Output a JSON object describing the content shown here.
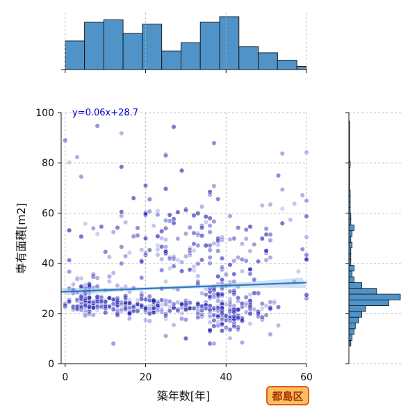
{
  "chart_data": {
    "type": "scatter",
    "title": "",
    "xlabel": "築年数[年]",
    "ylabel": "専有面積[m2]",
    "xlim": [
      -1,
      60
    ],
    "ylim": [
      0,
      100
    ],
    "xticks": [
      0,
      20,
      40,
      60
    ],
    "yticks": [
      0,
      20,
      40,
      60,
      80,
      100
    ],
    "grid": true,
    "regression": {
      "slope": 0.06,
      "intercept": 28.7,
      "label": "y=0.06x+28.7"
    },
    "badge": "都島区",
    "colors": {
      "point": "#1a1ab4",
      "hist_fill": "#4f93c8",
      "hist_edge": "#111111",
      "line": "#2a7bbf",
      "band": "#a8c8e8",
      "badge_fill": "#f8c060",
      "badge_edge": "#e85a10",
      "badge_text": "#a83000",
      "annotation": "#0000cc",
      "grid": "#b0b0b0"
    },
    "clusters": [
      {
        "cx": 6,
        "cy": 23.5,
        "sx": 3.5,
        "sy": 1.8,
        "n": 80
      },
      {
        "cx": 5,
        "cy": 29,
        "sx": 2.5,
        "sy": 3,
        "n": 40
      },
      {
        "cx": 14,
        "cy": 24,
        "sx": 3,
        "sy": 2.5,
        "n": 50
      },
      {
        "cx": 21,
        "cy": 23,
        "sx": 2.5,
        "sy": 2.5,
        "n": 55
      },
      {
        "cx": 28,
        "cy": 22,
        "sx": 3.5,
        "sy": 2.5,
        "n": 40
      },
      {
        "cx": 39,
        "cy": 19,
        "sx": 3,
        "sy": 4,
        "n": 90
      },
      {
        "cx": 38,
        "cy": 26,
        "sx": 4,
        "sy": 4,
        "n": 40
      },
      {
        "cx": 46,
        "cy": 24,
        "sx": 4,
        "sy": 3,
        "n": 40
      },
      {
        "cx": 30,
        "cy": 45,
        "sx": 16,
        "sy": 12,
        "n": 200
      },
      {
        "cx": 30,
        "cy": 72,
        "sx": 18,
        "sy": 14,
        "n": 30
      }
    ],
    "top_hist": {
      "bin_width": 4.8,
      "x_start": 0,
      "counts": [
        46,
        76,
        80,
        58,
        73,
        30,
        43,
        76,
        85,
        37,
        27,
        15,
        5
      ]
    },
    "right_hist": {
      "bin_height": 2.3,
      "y_start": 7,
      "counts": [
        3,
        5,
        8,
        10,
        15,
        20,
        26,
        62,
        80,
        43,
        20,
        8,
        5,
        8,
        3,
        3,
        3,
        5,
        3,
        5,
        8,
        3,
        3,
        2,
        2,
        2,
        2,
        1,
        1,
        1,
        1,
        2,
        1,
        1,
        1,
        1,
        1,
        1,
        1
      ]
    }
  }
}
